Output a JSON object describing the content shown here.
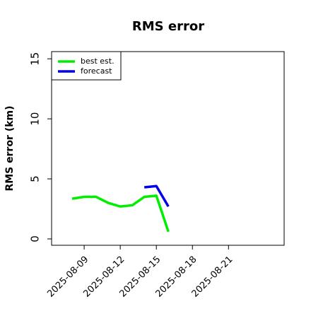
{
  "chart_data": {
    "type": "line",
    "title": "RMS error",
    "y_label": "RMS error (km)",
    "x": [
      "2025-08-08",
      "2025-08-09",
      "2025-08-10",
      "2025-08-11",
      "2025-08-12",
      "2025-08-13",
      "2025-08-14",
      "2025-08-15",
      "2025-08-16"
    ],
    "series": [
      {
        "name": "best est.",
        "color": "#00ee00",
        "values": [
          3.35,
          3.5,
          3.5,
          3.0,
          2.7,
          2.8,
          3.5,
          3.6,
          0.6
        ]
      },
      {
        "name": "forecast",
        "color": "#0000ee",
        "values": [
          null,
          null,
          null,
          null,
          null,
          null,
          4.3,
          4.4,
          2.7
        ]
      }
    ],
    "xlim": [
      "2025-08-06T07:00",
      "2025-08-25T15:00"
    ],
    "xticks": [
      "2025-08-09",
      "2025-08-12",
      "2025-08-15",
      "2025-08-18",
      "2025-08-21"
    ],
    "ylim": [
      -0.53,
      15.6
    ],
    "yticks": [
      0,
      5,
      10,
      15
    ],
    "legend": "top-left"
  }
}
